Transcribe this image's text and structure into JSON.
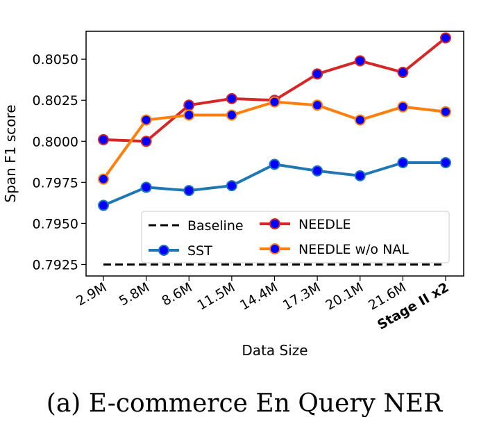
{
  "chart_data": {
    "type": "line",
    "title": "",
    "xlabel": "Data Size",
    "ylabel": "Span F1 score",
    "categories": [
      "2.9M",
      "5.8M",
      "8.6M",
      "11.5M",
      "14.4M",
      "17.3M",
      "20.1M",
      "21.6M",
      "Stage II x2"
    ],
    "category_bold": [
      false,
      false,
      false,
      false,
      false,
      false,
      false,
      false,
      true
    ],
    "ylim": [
      0.7918,
      0.8067
    ],
    "yticks": [
      "0.7925",
      "0.7950",
      "0.7975",
      "0.8000",
      "0.8025",
      "0.8050"
    ],
    "ytick_values": [
      0.7925,
      0.795,
      0.7975,
      0.8,
      0.8025,
      0.805
    ],
    "grid": false,
    "legend_position": "lower-right",
    "series": [
      {
        "name": "Baseline",
        "style": "dashed",
        "color": "#000000",
        "marker": false,
        "values": [
          0.7925,
          0.7925,
          0.7925,
          0.7925,
          0.7925,
          0.7925,
          0.7925,
          0.7925,
          0.7925
        ]
      },
      {
        "name": "SST",
        "style": "solid",
        "color": "#1f77b4",
        "marker": true,
        "values": [
          0.7961,
          0.7972,
          0.797,
          0.7973,
          0.7986,
          0.7982,
          0.7979,
          0.7987,
          0.7987
        ]
      },
      {
        "name": "NEEDLE",
        "style": "solid",
        "color": "#d62728",
        "marker": true,
        "values": [
          0.8001,
          0.8,
          0.8022,
          0.8026,
          0.8025,
          0.8041,
          0.8049,
          0.8042,
          0.8063
        ]
      },
      {
        "name": "NEEDLE w/o NAL",
        "style": "solid",
        "color": "#ff7f0e",
        "marker": true,
        "values": [
          0.7977,
          0.8013,
          0.8016,
          0.8016,
          0.8024,
          0.8022,
          0.8013,
          0.8021,
          0.8018
        ]
      }
    ],
    "marker_fill": "#0000ff"
  },
  "caption": "(a) E-commerce En Query NER"
}
